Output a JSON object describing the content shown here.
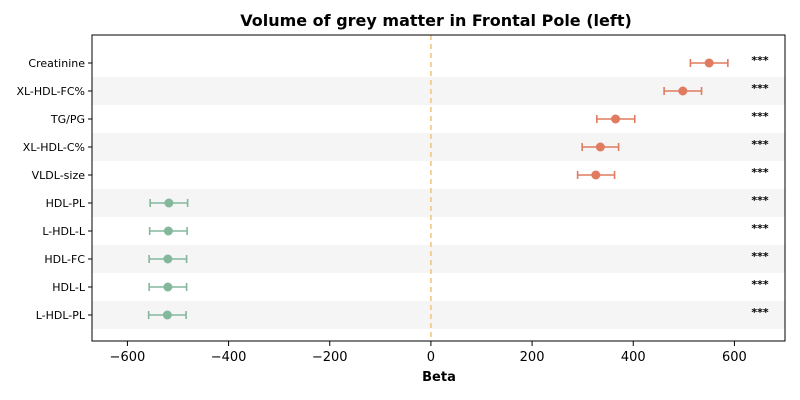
{
  "chart_data": {
    "type": "forest",
    "title": "Volume of grey matter in Frontal Pole (left)",
    "xlabel": "Beta",
    "xlim": [
      -670,
      700
    ],
    "xticks": [
      -600,
      -400,
      -200,
      0,
      200,
      400,
      600
    ],
    "xtick_labels": [
      "−600",
      "−400",
      "−200",
      "0",
      "200",
      "400",
      "600"
    ],
    "reference_line": 0,
    "alternating_row_shading": true,
    "colors": {
      "positive": "#e07b5f",
      "negative": "#83b89c",
      "reference": "#f0c27b",
      "stripe": "#f5f5f5"
    },
    "rows": [
      {
        "label": "Creatinine",
        "beta": 550,
        "ci_low": 513,
        "ci_high": 587,
        "sig": "***"
      },
      {
        "label": "XL-HDL-FC%",
        "beta": 498,
        "ci_low": 461,
        "ci_high": 535,
        "sig": "***"
      },
      {
        "label": "TG/PG",
        "beta": 365,
        "ci_low": 328,
        "ci_high": 403,
        "sig": "***"
      },
      {
        "label": "XL-HDL-C%",
        "beta": 335,
        "ci_low": 299,
        "ci_high": 371,
        "sig": "***"
      },
      {
        "label": "VLDL-size",
        "beta": 326,
        "ci_low": 290,
        "ci_high": 363,
        "sig": "***"
      },
      {
        "label": "HDL-PL",
        "beta": -518,
        "ci_low": -555,
        "ci_high": -481,
        "sig": "***"
      },
      {
        "label": "L-HDL-L",
        "beta": -519,
        "ci_low": -556,
        "ci_high": -482,
        "sig": "***"
      },
      {
        "label": "HDL-FC",
        "beta": -520,
        "ci_low": -557,
        "ci_high": -483,
        "sig": "***"
      },
      {
        "label": "HDL-L",
        "beta": -520,
        "ci_low": -557,
        "ci_high": -483,
        "sig": "***"
      },
      {
        "label": "L-HDL-PL",
        "beta": -521,
        "ci_low": -558,
        "ci_high": -484,
        "sig": "***"
      }
    ]
  }
}
